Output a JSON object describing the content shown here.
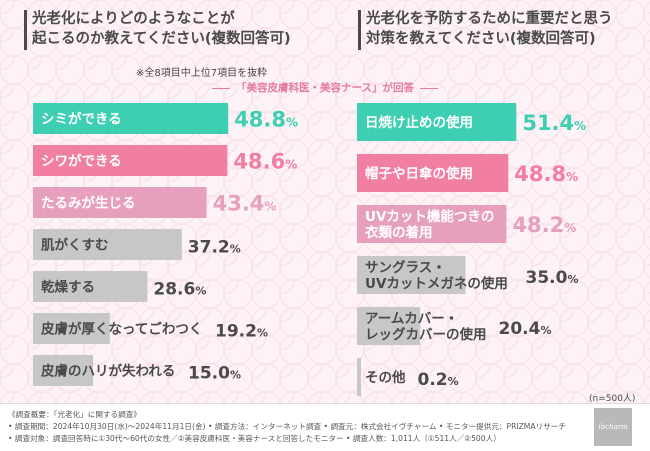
{
  "titles": {
    "left_line1": "光老化によりどのようなことが",
    "left_line2": "起こるのか教えてください(複数回答可)",
    "right_line1": "光老化を予防するために重要だと思う",
    "right_line2": "対策を教えてください(複数回答可)"
  },
  "note": "※全8項目中上位7項目を抜粋",
  "respondent_header": "「美容皮膚科医・美容ナース」が回答",
  "sample_note": "(n=500人)",
  "colors": {
    "rank1": "#3ecfb2",
    "rank2": "#f07fa2",
    "rank3": "#e6a0bd",
    "other": "#c7c7c7",
    "text_dark": "#4a4a4a"
  },
  "chart_data": [
    {
      "type": "bar",
      "orientation": "horizontal",
      "title": "光老化によりどのようなことが起こるのか教えてください(複数回答可)",
      "unit": "%",
      "xlim": [
        0,
        100
      ],
      "categories": [
        "シミができる",
        "シワができる",
        "たるみが生じる",
        "肌がくすむ",
        "乾燥する",
        "皮膚が厚くなってごわつく",
        "皮膚のハリが失われる"
      ],
      "values": [
        48.8,
        48.6,
        43.4,
        37.2,
        28.6,
        19.2,
        15.0
      ],
      "value_labels": [
        "48.8",
        "48.6",
        "43.4",
        "37.2",
        "28.6",
        "19.2",
        "15.0"
      ]
    },
    {
      "type": "bar",
      "orientation": "horizontal",
      "title": "光老化を予防するために重要だと思う対策を教えてください(複数回答可)",
      "unit": "%",
      "xlim": [
        0,
        100
      ],
      "categories": [
        "日焼け止めの使用",
        "帽子や日傘の使用",
        "UVカット機能つきの\n衣類の着用",
        "サングラス・\nUVカットメガネの使用",
        "アームカバー・\nレッグカバーの使用",
        "その他"
      ],
      "values": [
        51.4,
        48.8,
        48.2,
        35.0,
        20.4,
        0.2
      ],
      "value_labels": [
        "51.4",
        "48.8",
        "48.2",
        "35.0",
        "20.4",
        "0.2"
      ]
    }
  ],
  "footer": {
    "line1": "《調査概要：「光老化」に関する調査》",
    "line2": "• 調査期間：2024年10月30日(水)〜2024年11月1日(金) • 調査方法：インターネット調査 • 調査元：株式会社イヴチャーム • モニター提供元：PRIZMAリサーチ",
    "line3": "• 調査対象：調査回答時に①30代〜60代の女性／②美容皮膚科医・美容ナースと回答したモニター • 調査人数：1,011人（①511人／②500人）",
    "logo": "ibcharm"
  }
}
